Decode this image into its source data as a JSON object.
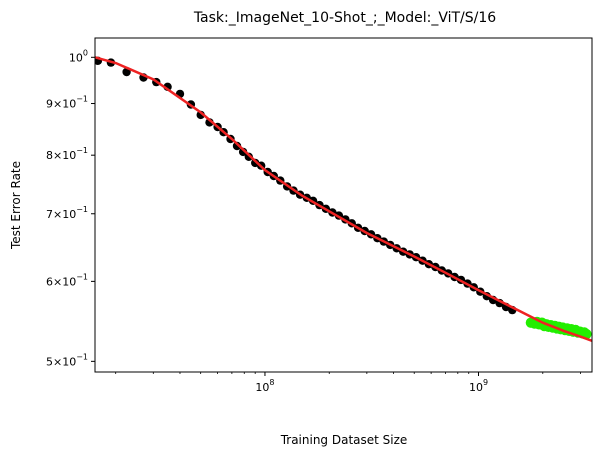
{
  "chart_data": {
    "type": "scatter",
    "title": "Task:_ImageNet_10-Shot_;_Model:_ViT/S/16",
    "xlabel": "Training Dataset Size",
    "ylabel": "Test Error Rate",
    "x_scale": "log",
    "y_scale": "log",
    "xlim": [
      16000000,
      3400000000
    ],
    "ylim": [
      0.488,
      1.045
    ],
    "grid": false,
    "x_ticks": [
      {
        "value": 100000000,
        "base": "10",
        "exp": "8"
      },
      {
        "value": 1000000000,
        "base": "10",
        "exp": "9"
      }
    ],
    "y_ticks": [
      {
        "value": 0.5,
        "mant": "5",
        "base": "10",
        "exp": "−1"
      },
      {
        "value": 0.6,
        "mant": "6",
        "base": "10",
        "exp": "−1"
      },
      {
        "value": 0.7,
        "mant": "7",
        "base": "10",
        "exp": "−1"
      },
      {
        "value": 0.8,
        "mant": "8",
        "base": "10",
        "exp": "−1"
      },
      {
        "value": 0.9,
        "mant": "9",
        "base": "10",
        "exp": "−1"
      },
      {
        "value": 1.0,
        "mant": "",
        "base": "10",
        "exp": "0"
      }
    ],
    "series": [
      {
        "role": "observed",
        "color": "#000000",
        "points": [
          [
            16500000,
            0.992
          ],
          [
            19000000,
            0.988
          ],
          [
            22500000,
            0.967
          ],
          [
            27000000,
            0.955
          ],
          [
            31000000,
            0.945
          ],
          [
            35000000,
            0.935
          ],
          [
            40000000,
            0.92
          ],
          [
            45000000,
            0.898
          ],
          [
            50000000,
            0.877
          ],
          [
            55000000,
            0.862
          ],
          [
            60000000,
            0.853
          ],
          [
            64000000,
            0.843
          ],
          [
            69000000,
            0.83
          ],
          [
            74000000,
            0.817
          ],
          [
            79000000,
            0.806
          ],
          [
            84000000,
            0.797
          ],
          [
            90000000,
            0.786
          ],
          [
            96000000,
            0.781
          ],
          [
            103000000,
            0.77
          ],
          [
            110000000,
            0.763
          ],
          [
            118000000,
            0.755
          ],
          [
            127000000,
            0.745
          ],
          [
            136000000,
            0.738
          ],
          [
            146000000,
            0.731
          ],
          [
            157000000,
            0.726
          ],
          [
            168000000,
            0.721
          ],
          [
            180000000,
            0.714
          ],
          [
            193000000,
            0.708
          ],
          [
            207000000,
            0.702
          ],
          [
            222000000,
            0.697
          ],
          [
            238000000,
            0.691
          ],
          [
            255000000,
            0.685
          ],
          [
            273000000,
            0.678
          ],
          [
            293000000,
            0.673
          ],
          [
            314000000,
            0.668
          ],
          [
            336000000,
            0.662
          ],
          [
            360000000,
            0.657
          ],
          [
            386000000,
            0.652
          ],
          [
            414000000,
            0.647
          ],
          [
            444000000,
            0.642
          ],
          [
            476000000,
            0.638
          ],
          [
            510000000,
            0.634
          ],
          [
            547000000,
            0.629
          ],
          [
            586000000,
            0.624
          ],
          [
            628000000,
            0.62
          ],
          [
            673000000,
            0.615
          ],
          [
            721000000,
            0.611
          ],
          [
            773000000,
            0.606
          ],
          [
            828000000,
            0.602
          ],
          [
            888000000,
            0.597
          ],
          [
            951000000,
            0.592
          ],
          [
            1020000000,
            0.586
          ],
          [
            1093000000,
            0.58
          ],
          [
            1171000000,
            0.575
          ],
          [
            1255000000,
            0.571
          ],
          [
            1345000000,
            0.566
          ],
          [
            1440000000,
            0.562
          ]
        ]
      },
      {
        "role": "held-out",
        "color": "#22ee00",
        "points": [
          [
            1760000000,
            0.546
          ],
          [
            1830000000,
            0.545
          ],
          [
            1880000000,
            0.547
          ],
          [
            1920000000,
            0.544
          ],
          [
            1980000000,
            0.546
          ],
          [
            2030000000,
            0.542
          ],
          [
            2080000000,
            0.544
          ],
          [
            2130000000,
            0.541
          ],
          [
            2180000000,
            0.543
          ],
          [
            2230000000,
            0.54
          ],
          [
            2280000000,
            0.542
          ],
          [
            2330000000,
            0.539
          ],
          [
            2380000000,
            0.541
          ],
          [
            2430000000,
            0.538
          ],
          [
            2480000000,
            0.54
          ],
          [
            2540000000,
            0.537
          ],
          [
            2600000000,
            0.539
          ],
          [
            2660000000,
            0.536
          ],
          [
            2720000000,
            0.538
          ],
          [
            2780000000,
            0.535
          ],
          [
            2850000000,
            0.537
          ],
          [
            2920000000,
            0.534
          ],
          [
            2990000000,
            0.535
          ],
          [
            3060000000,
            0.533
          ],
          [
            3130000000,
            0.534
          ],
          [
            3200000000,
            0.532
          ]
        ]
      },
      {
        "role": "fit",
        "color": "#ee2222",
        "points": [
          [
            16000000,
            1.0
          ],
          [
            20000000,
            0.987
          ],
          [
            30000000,
            0.951
          ],
          [
            50000000,
            0.882
          ],
          [
            70000000,
            0.83
          ],
          [
            100000000,
            0.773
          ],
          [
            150000000,
            0.729
          ],
          [
            200000000,
            0.704
          ],
          [
            300000000,
            0.67
          ],
          [
            500000000,
            0.635
          ],
          [
            700000000,
            0.612
          ],
          [
            1000000000,
            0.588
          ],
          [
            1500000000,
            0.563
          ],
          [
            2000000000,
            0.546
          ],
          [
            2500000000,
            0.536
          ],
          [
            3000000000,
            0.529
          ],
          [
            3400000000,
            0.524
          ]
        ]
      }
    ]
  }
}
